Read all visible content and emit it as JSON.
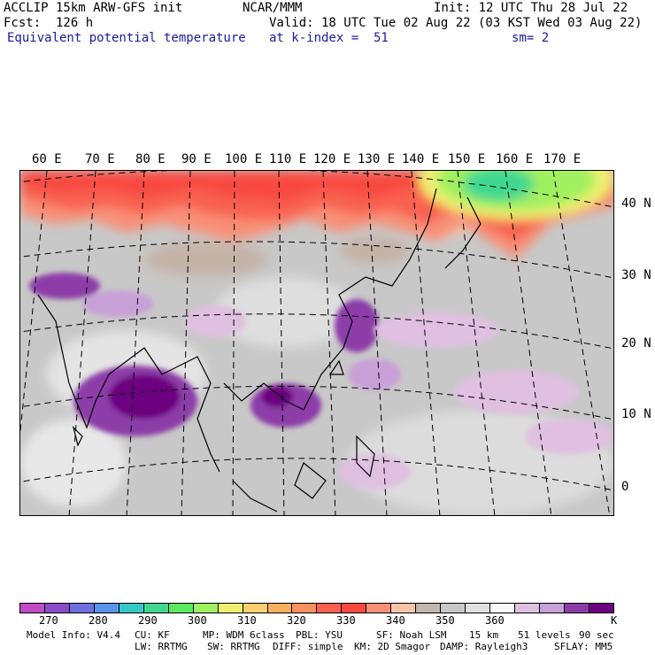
{
  "header": {
    "model": "ACCLIP 15km ARW-GFS init",
    "org": "NCAR/MMM",
    "init": "Init: 12 UTC Thu 28 Jul 22",
    "fcst": "Fcst:  126 h",
    "valid": "Valid: 18 UTC Tue 02 Aug 22 (03 KST Wed 03 Aug 22)",
    "field": "Equivalent potential temperature",
    "level": "at k-index =  51",
    "smooth": "sm= 2"
  },
  "map": {
    "lon_labels": [
      "60 E",
      "70 E",
      "80 E",
      "90 E",
      "100 E",
      "110 E",
      "120 E",
      "130 E",
      "140 E",
      "150 E",
      "160 E",
      "170 E"
    ],
    "lat_labels": [
      "40 N",
      "30 N",
      "20 N",
      "10 N",
      "0"
    ]
  },
  "colorbar": {
    "colors": [
      "#c04cc8",
      "#8a4cc8",
      "#7070e0",
      "#5a94e8",
      "#34c8c8",
      "#40d890",
      "#5ae860",
      "#a0f060",
      "#f0f070",
      "#f8d070",
      "#f8b060",
      "#f89060",
      "#f86050",
      "#f84a40",
      "#f89078",
      "#f8c4a8",
      "#c0b8b0",
      "#c8c8c8",
      "#e0e0e0",
      "#f8f8f8",
      "#e0c0e0",
      "#c8a0d8",
      "#8c3ca8",
      "#6c0080"
    ],
    "tick_labels": [
      "270",
      "280",
      "290",
      "300",
      "310",
      "320",
      "330",
      "340",
      "350",
      "360"
    ],
    "unit": "K"
  },
  "footer": {
    "line1": [
      "Model Info: V4.4",
      "CU: KF",
      "MP: WDM 6class",
      "PBL: YSU",
      "SF: Noah LSM",
      "15 km",
      "51 levels",
      "90 sec"
    ],
    "line2": [
      "LW: RRTMG",
      "SW: RRTMG",
      "DIFF: simple",
      "KM: 2D Smagor",
      "DAMP: Rayleigh3",
      "SFLAY: MM5"
    ]
  }
}
